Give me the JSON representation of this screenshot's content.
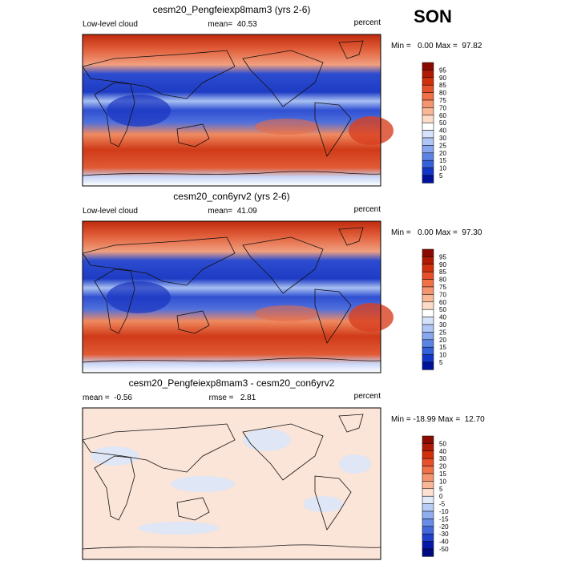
{
  "header": {
    "season": "SON"
  },
  "panels": [
    {
      "title": "cesm20_Pengfeiexp8mam3 (yrs 2-6)",
      "left": "Low-level cloud",
      "center": "mean=  40.53",
      "right": "percent",
      "minmax": "Min =   0.00 Max =  97.82",
      "colorbar": [
        95,
        90,
        85,
        80,
        75,
        70,
        60,
        50,
        40,
        30,
        25,
        20,
        15,
        10,
        5
      ]
    },
    {
      "title": "cesm20_con6yrv2 (yrs 2-6)",
      "left": "Low-level cloud",
      "center": "mean=  41.09",
      "right": "percent",
      "minmax": "Min =   0.00 Max =  97.30",
      "colorbar": [
        95,
        90,
        85,
        80,
        75,
        70,
        60,
        50,
        40,
        30,
        25,
        20,
        15,
        10,
        5
      ]
    },
    {
      "title": "cesm20_Pengfeiexp8mam3 - cesm20_con6yrv2",
      "left": "mean =  -0.56",
      "center": "rmse =   2.81",
      "right": "percent",
      "minmax": "Min = -18.99 Max =  12.70",
      "colorbar": [
        50,
        40,
        30,
        20,
        15,
        10,
        5,
        0,
        -5,
        -10,
        -15,
        -20,
        -30,
        -40,
        -50
      ]
    }
  ]
}
